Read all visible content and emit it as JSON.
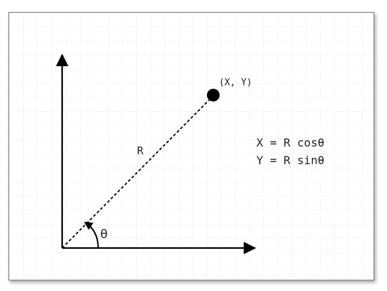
{
  "diagram": {
    "point_label": "(X, Y)",
    "radius_label": "R",
    "angle_label": "θ",
    "equations": [
      "X = R cosθ",
      "Y = R sinθ"
    ],
    "colors": {
      "grid": "#eeeeee",
      "stroke": "#000000",
      "text": "#222222",
      "frame_border": "#7a7a7a"
    }
  }
}
